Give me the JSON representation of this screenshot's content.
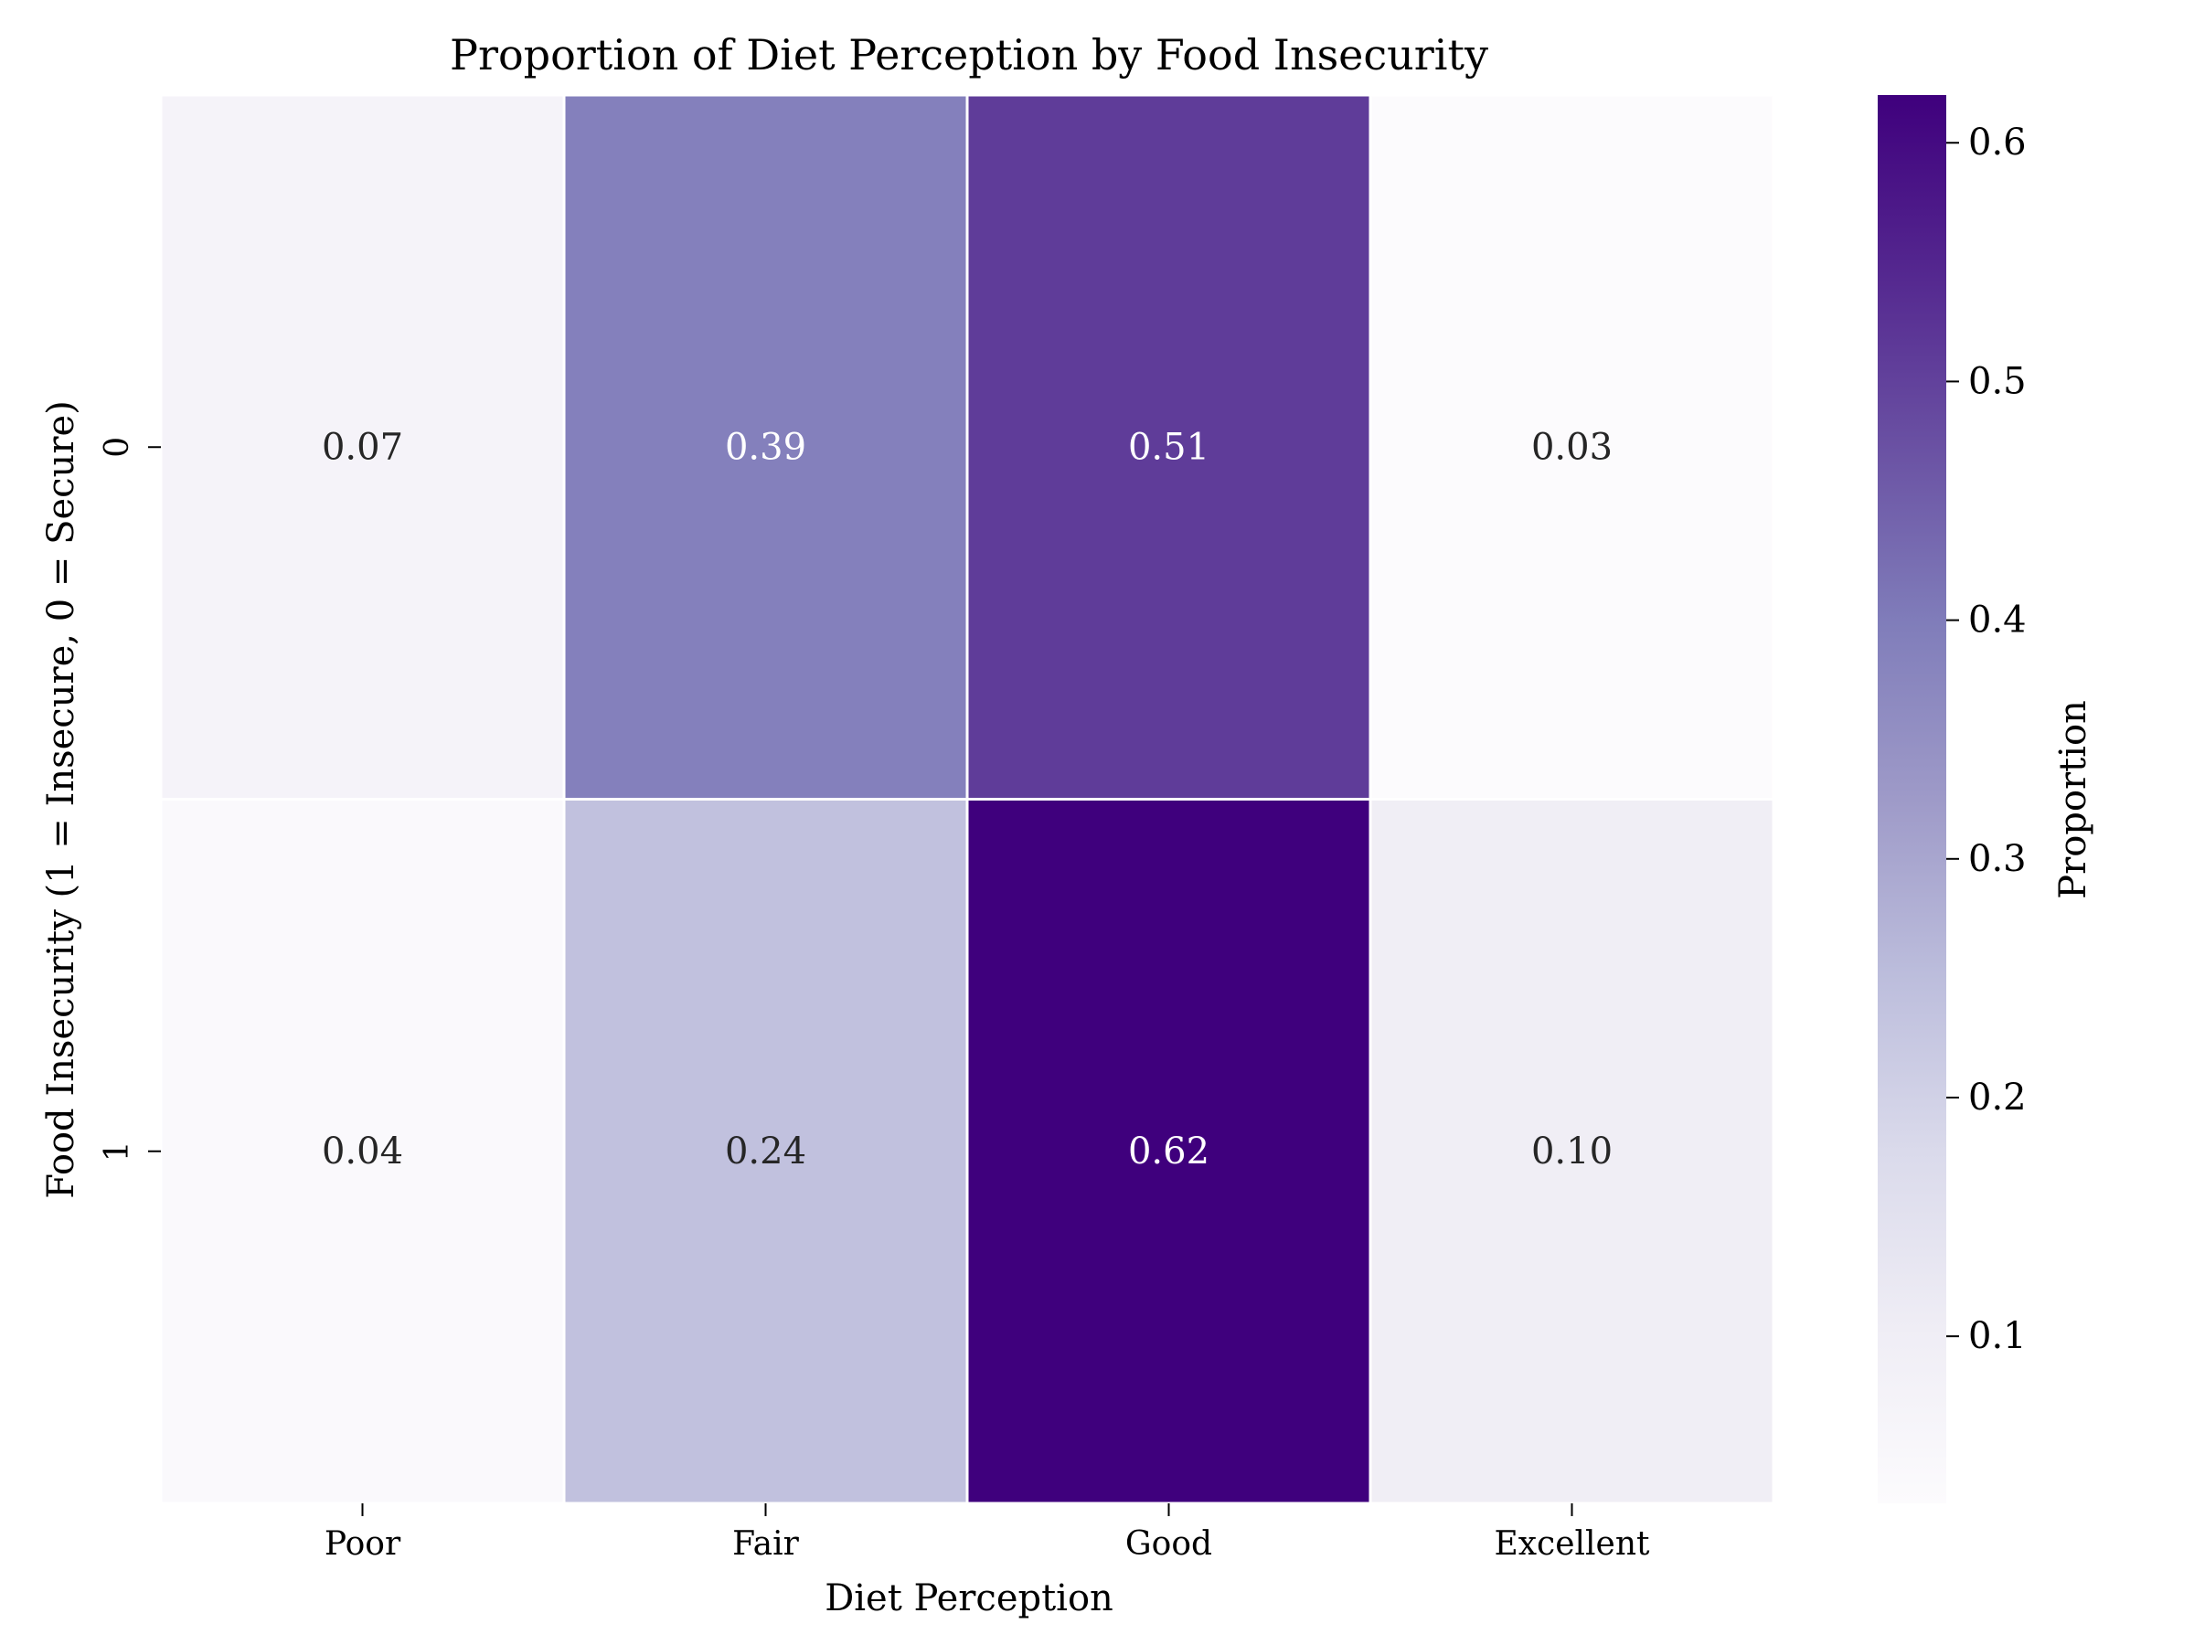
{
  "chart_data": {
    "type": "heatmap",
    "title": "Proportion of Diet Perception by Food Insecurity",
    "xlabel": "Diet Perception",
    "ylabel": "Food Insecurity (1 = Insecure, 0 = Secure)",
    "x_categories": [
      "Poor",
      "Fair",
      "Good",
      "Excellent"
    ],
    "y_categories": [
      "0",
      "1"
    ],
    "values": [
      [
        0.07,
        0.39,
        0.51,
        0.03
      ],
      [
        0.04,
        0.24,
        0.62,
        0.1
      ]
    ],
    "colorbar": {
      "label": "Proportion",
      "range": [
        0.03,
        0.62
      ],
      "ticks": [
        0.1,
        0.2,
        0.3,
        0.4,
        0.5,
        0.6
      ],
      "tick_labels": [
        "0.1",
        "0.2",
        "0.3",
        "0.4",
        "0.5",
        "0.6"
      ],
      "colormap": "Purples",
      "colormap_stops": [
        "#fcfbfd",
        "#efedf5",
        "#dadaeb",
        "#bcbddc",
        "#9e9ac8",
        "#807dba",
        "#6a51a3",
        "#54278f",
        "#3f007d"
      ]
    },
    "annotation_format": "0.00"
  }
}
